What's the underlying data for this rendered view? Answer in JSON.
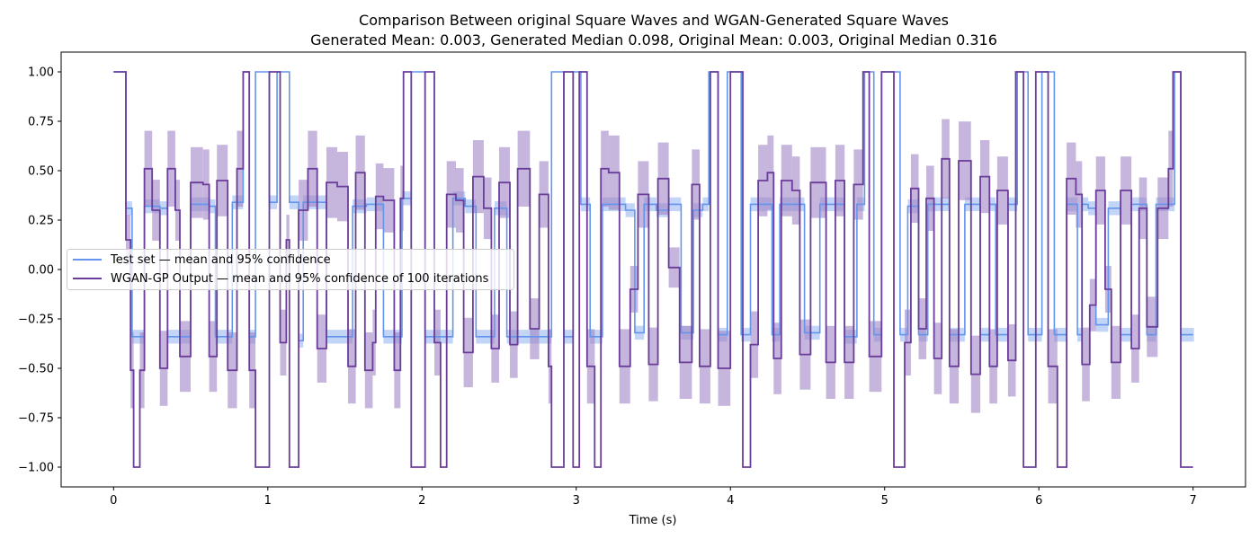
{
  "chart_data": {
    "type": "line",
    "title": "Comparison Between original Square Waves and WGAN-Generated Square Waves",
    "subtitle": "Generated Mean: 0.003, Generated Median 0.098, Original Mean: 0.003, Original Median 0.316",
    "xlabel": "Time (s)",
    "ylabel": "",
    "xlim": [
      -0.34,
      7.34
    ],
    "ylim": [
      -1.1,
      1.1
    ],
    "x_ticks": [
      "0",
      "1",
      "2",
      "3",
      "4",
      "5",
      "6",
      "7"
    ],
    "y_ticks": [
      "1.00",
      "0.75",
      "0.50",
      "0.25",
      "0.00",
      "−0.25",
      "−0.50",
      "−0.75",
      "−1.00"
    ],
    "grid": false,
    "legend_position": "center-left",
    "series": [
      {
        "name": "Test set — mean and 95% confidence",
        "color": "#6495ED",
        "band_color": "#8fb3ef",
        "steps": [
          [
            0.0,
            1.0
          ],
          [
            0.08,
            0.31
          ],
          [
            0.12,
            -0.34
          ],
          [
            0.17,
            -0.34
          ],
          [
            0.2,
            0.32
          ],
          [
            0.3,
            0.31
          ],
          [
            0.35,
            -0.34
          ],
          [
            0.43,
            -0.34
          ],
          [
            0.5,
            0.33
          ],
          [
            0.62,
            0.32
          ],
          [
            0.66,
            -0.34
          ],
          [
            0.74,
            -0.34
          ],
          [
            0.77,
            0.34
          ],
          [
            0.8,
            0.34
          ],
          [
            0.84,
            1.0
          ],
          [
            0.88,
            -0.34
          ],
          [
            0.92,
            1.0
          ],
          [
            1.01,
            0.34
          ],
          [
            1.06,
            1.0
          ],
          [
            1.14,
            0.34
          ],
          [
            1.2,
            -0.36
          ],
          [
            1.23,
            0.34
          ],
          [
            1.3,
            0.34
          ],
          [
            1.38,
            -0.34
          ],
          [
            1.48,
            -0.34
          ],
          [
            1.55,
            0.32
          ],
          [
            1.64,
            0.33
          ],
          [
            1.75,
            -0.34
          ],
          [
            1.82,
            -0.34
          ],
          [
            1.87,
            0.36
          ],
          [
            1.93,
            1.0
          ],
          [
            2.02,
            -0.34
          ],
          [
            2.12,
            -0.34
          ],
          [
            2.2,
            0.36
          ],
          [
            2.28,
            0.32
          ],
          [
            2.35,
            -0.34
          ],
          [
            2.47,
            0.31
          ],
          [
            2.55,
            -0.34
          ],
          [
            2.65,
            -0.34
          ],
          [
            2.76,
            -0.34
          ],
          [
            2.84,
            1.0
          ],
          [
            2.92,
            -0.34
          ],
          [
            2.98,
            1.0
          ],
          [
            3.03,
            0.33
          ],
          [
            3.09,
            -0.34
          ],
          [
            3.17,
            0.33
          ],
          [
            3.25,
            0.33
          ],
          [
            3.32,
            0.3
          ],
          [
            3.38,
            -0.32
          ],
          [
            3.44,
            0.33
          ],
          [
            3.52,
            0.3
          ],
          [
            3.6,
            0.33
          ],
          [
            3.68,
            -0.32
          ],
          [
            3.76,
            0.3
          ],
          [
            3.82,
            0.33
          ],
          [
            3.86,
            1.0
          ],
          [
            3.92,
            -0.33
          ],
          [
            3.98,
            1.0
          ],
          [
            4.07,
            -0.33
          ],
          [
            4.13,
            0.33
          ],
          [
            4.2,
            0.33
          ],
          [
            4.27,
            -0.33
          ],
          [
            4.32,
            0.33
          ],
          [
            4.4,
            0.33
          ],
          [
            4.48,
            -0.32
          ],
          [
            4.58,
            0.33
          ],
          [
            4.67,
            0.33
          ],
          [
            4.74,
            -0.34
          ],
          [
            4.82,
            0.33
          ],
          [
            4.87,
            1.0
          ],
          [
            4.93,
            -0.33
          ],
          [
            4.98,
            1.0
          ],
          [
            5.1,
            -0.33
          ],
          [
            5.15,
            0.32
          ],
          [
            5.22,
            -0.33
          ],
          [
            5.28,
            0.33
          ],
          [
            5.35,
            0.33
          ],
          [
            5.42,
            -0.33
          ],
          [
            5.52,
            0.33
          ],
          [
            5.62,
            -0.33
          ],
          [
            5.68,
            0.33
          ],
          [
            5.72,
            -0.33
          ],
          [
            5.8,
            0.33
          ],
          [
            5.86,
            1.0
          ],
          [
            5.93,
            -0.33
          ],
          [
            6.02,
            1.0
          ],
          [
            6.1,
            -0.33
          ],
          [
            6.18,
            0.33
          ],
          [
            6.25,
            -0.33
          ],
          [
            6.28,
            0.33
          ],
          [
            6.32,
            0.31
          ],
          [
            6.37,
            -0.28
          ],
          [
            6.45,
            0.31
          ],
          [
            6.53,
            -0.33
          ],
          [
            6.6,
            0.33
          ],
          [
            6.7,
            -0.33
          ],
          [
            6.76,
            0.33
          ],
          [
            6.84,
            0.33
          ],
          [
            6.88,
            1.0
          ],
          [
            6.92,
            -0.33
          ],
          [
            7.0,
            -0.33
          ]
        ]
      },
      {
        "name": "WGAN-GP Output — mean and 95% confidence of 100 iterations",
        "color": "#6A3D9A",
        "band_color": "#a084c4",
        "steps": [
          [
            0.0,
            1.0
          ],
          [
            0.08,
            0.15
          ],
          [
            0.11,
            -0.51
          ],
          [
            0.13,
            -1.0
          ],
          [
            0.17,
            -0.51
          ],
          [
            0.2,
            0.51
          ],
          [
            0.25,
            0.3
          ],
          [
            0.3,
            -0.5
          ],
          [
            0.35,
            0.51
          ],
          [
            0.4,
            0.3
          ],
          [
            0.43,
            -0.44
          ],
          [
            0.5,
            0.44
          ],
          [
            0.58,
            0.43
          ],
          [
            0.62,
            -0.44
          ],
          [
            0.67,
            0.45
          ],
          [
            0.74,
            -0.51
          ],
          [
            0.8,
            0.51
          ],
          [
            0.84,
            1.0
          ],
          [
            0.88,
            -0.51
          ],
          [
            0.92,
            -1.0
          ],
          [
            1.01,
            1.0
          ],
          [
            1.08,
            -0.37
          ],
          [
            1.12,
            0.15
          ],
          [
            1.14,
            -1.0
          ],
          [
            1.2,
            0.3
          ],
          [
            1.26,
            0.51
          ],
          [
            1.32,
            -0.4
          ],
          [
            1.38,
            0.44
          ],
          [
            1.45,
            0.42
          ],
          [
            1.52,
            -0.49
          ],
          [
            1.57,
            0.49
          ],
          [
            1.63,
            -0.51
          ],
          [
            1.68,
            -0.37
          ],
          [
            1.7,
            0.37
          ],
          [
            1.75,
            0.35
          ],
          [
            1.82,
            -0.51
          ],
          [
            1.86,
            0.36
          ],
          [
            1.88,
            1.0
          ],
          [
            1.93,
            -1.0
          ],
          [
            2.02,
            1.0
          ],
          [
            2.08,
            -0.37
          ],
          [
            2.12,
            -1.0
          ],
          [
            2.16,
            0.38
          ],
          [
            2.22,
            0.35
          ],
          [
            2.27,
            -0.42
          ],
          [
            2.33,
            0.47
          ],
          [
            2.4,
            0.31
          ],
          [
            2.45,
            -0.4
          ],
          [
            2.5,
            0.44
          ],
          [
            2.57,
            -0.38
          ],
          [
            2.62,
            0.51
          ],
          [
            2.7,
            -0.3
          ],
          [
            2.76,
            0.38
          ],
          [
            2.82,
            -0.49
          ],
          [
            2.84,
            -1.0
          ],
          [
            2.92,
            1.0
          ],
          [
            2.98,
            -1.0
          ],
          [
            3.02,
            1.0
          ],
          [
            3.07,
            -0.49
          ],
          [
            3.12,
            -1.0
          ],
          [
            3.16,
            0.51
          ],
          [
            3.21,
            0.49
          ],
          [
            3.28,
            -0.49
          ],
          [
            3.35,
            -0.1
          ],
          [
            3.4,
            0.38
          ],
          [
            3.47,
            -0.48
          ],
          [
            3.53,
            0.46
          ],
          [
            3.6,
            0.01
          ],
          [
            3.67,
            -0.47
          ],
          [
            3.75,
            0.43
          ],
          [
            3.8,
            -0.49
          ],
          [
            3.87,
            1.0
          ],
          [
            3.92,
            -0.5
          ],
          [
            4.0,
            1.0
          ],
          [
            4.08,
            -1.0
          ],
          [
            4.13,
            -0.38
          ],
          [
            4.18,
            0.45
          ],
          [
            4.24,
            0.49
          ],
          [
            4.28,
            -0.45
          ],
          [
            4.33,
            0.45
          ],
          [
            4.4,
            0.4
          ],
          [
            4.45,
            -0.43
          ],
          [
            4.52,
            0.44
          ],
          [
            4.62,
            -0.47
          ],
          [
            4.68,
            0.45
          ],
          [
            4.74,
            -0.47
          ],
          [
            4.8,
            0.43
          ],
          [
            4.86,
            1.0
          ],
          [
            4.9,
            -0.44
          ],
          [
            4.98,
            1.0
          ],
          [
            5.06,
            -1.0
          ],
          [
            5.13,
            -0.37
          ],
          [
            5.17,
            0.41
          ],
          [
            5.22,
            -0.3
          ],
          [
            5.27,
            0.36
          ],
          [
            5.32,
            -0.45
          ],
          [
            5.37,
            0.56
          ],
          [
            5.42,
            -0.49
          ],
          [
            5.48,
            0.55
          ],
          [
            5.56,
            -0.53
          ],
          [
            5.62,
            0.47
          ],
          [
            5.68,
            -0.49
          ],
          [
            5.73,
            0.4
          ],
          [
            5.8,
            -0.46
          ],
          [
            5.85,
            1.0
          ],
          [
            5.9,
            -1.0
          ],
          [
            5.98,
            1.0
          ],
          [
            6.06,
            -0.49
          ],
          [
            6.12,
            -1.0
          ],
          [
            6.18,
            0.46
          ],
          [
            6.24,
            0.38
          ],
          [
            6.28,
            -0.48
          ],
          [
            6.33,
            -0.18
          ],
          [
            6.37,
            0.4
          ],
          [
            6.43,
            -0.1
          ],
          [
            6.47,
            -0.47
          ],
          [
            6.53,
            0.4
          ],
          [
            6.6,
            -0.4
          ],
          [
            6.65,
            0.31
          ],
          [
            6.7,
            -0.29
          ],
          [
            6.77,
            0.31
          ],
          [
            6.84,
            0.51
          ],
          [
            6.87,
            1.0
          ],
          [
            6.92,
            -1.0
          ],
          [
            7.0,
            -1.0
          ]
        ]
      }
    ]
  }
}
